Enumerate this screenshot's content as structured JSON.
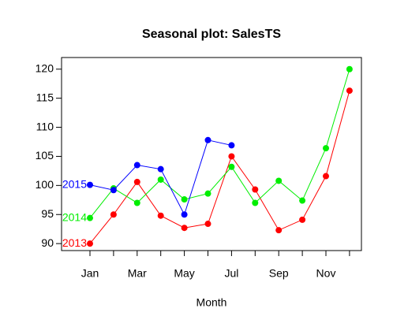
{
  "chart_data": {
    "type": "line",
    "title": "Seasonal plot: SalesTS",
    "x_label": "Month",
    "categories": [
      "Jan",
      null,
      "Mar",
      null,
      "May",
      null,
      "Jul",
      null,
      "Sep",
      null,
      "Nov",
      null
    ],
    "series": [
      {
        "name": "2013",
        "color": "#ff0000",
        "values": [
          90.0,
          95.0,
          100.6,
          94.8,
          92.7,
          93.4,
          105.0,
          99.3,
          92.3,
          94.1,
          101.6,
          116.3
        ]
      },
      {
        "name": "2014",
        "color": "#00ee00",
        "values": [
          94.4,
          99.5,
          97.0,
          101.0,
          97.6,
          98.6,
          103.2,
          97.0,
          100.8,
          97.4,
          106.4,
          120.0
        ]
      },
      {
        "name": "2015",
        "color": "#0000ff",
        "values": [
          100.1,
          99.2,
          103.5,
          102.8,
          95.0,
          107.8,
          106.9,
          null,
          null,
          null,
          null,
          null
        ]
      }
    ],
    "ylim": [
      88.8,
      122.0
    ],
    "yticks": [
      90,
      95,
      100,
      105,
      110,
      115,
      120
    ],
    "grid": false
  }
}
